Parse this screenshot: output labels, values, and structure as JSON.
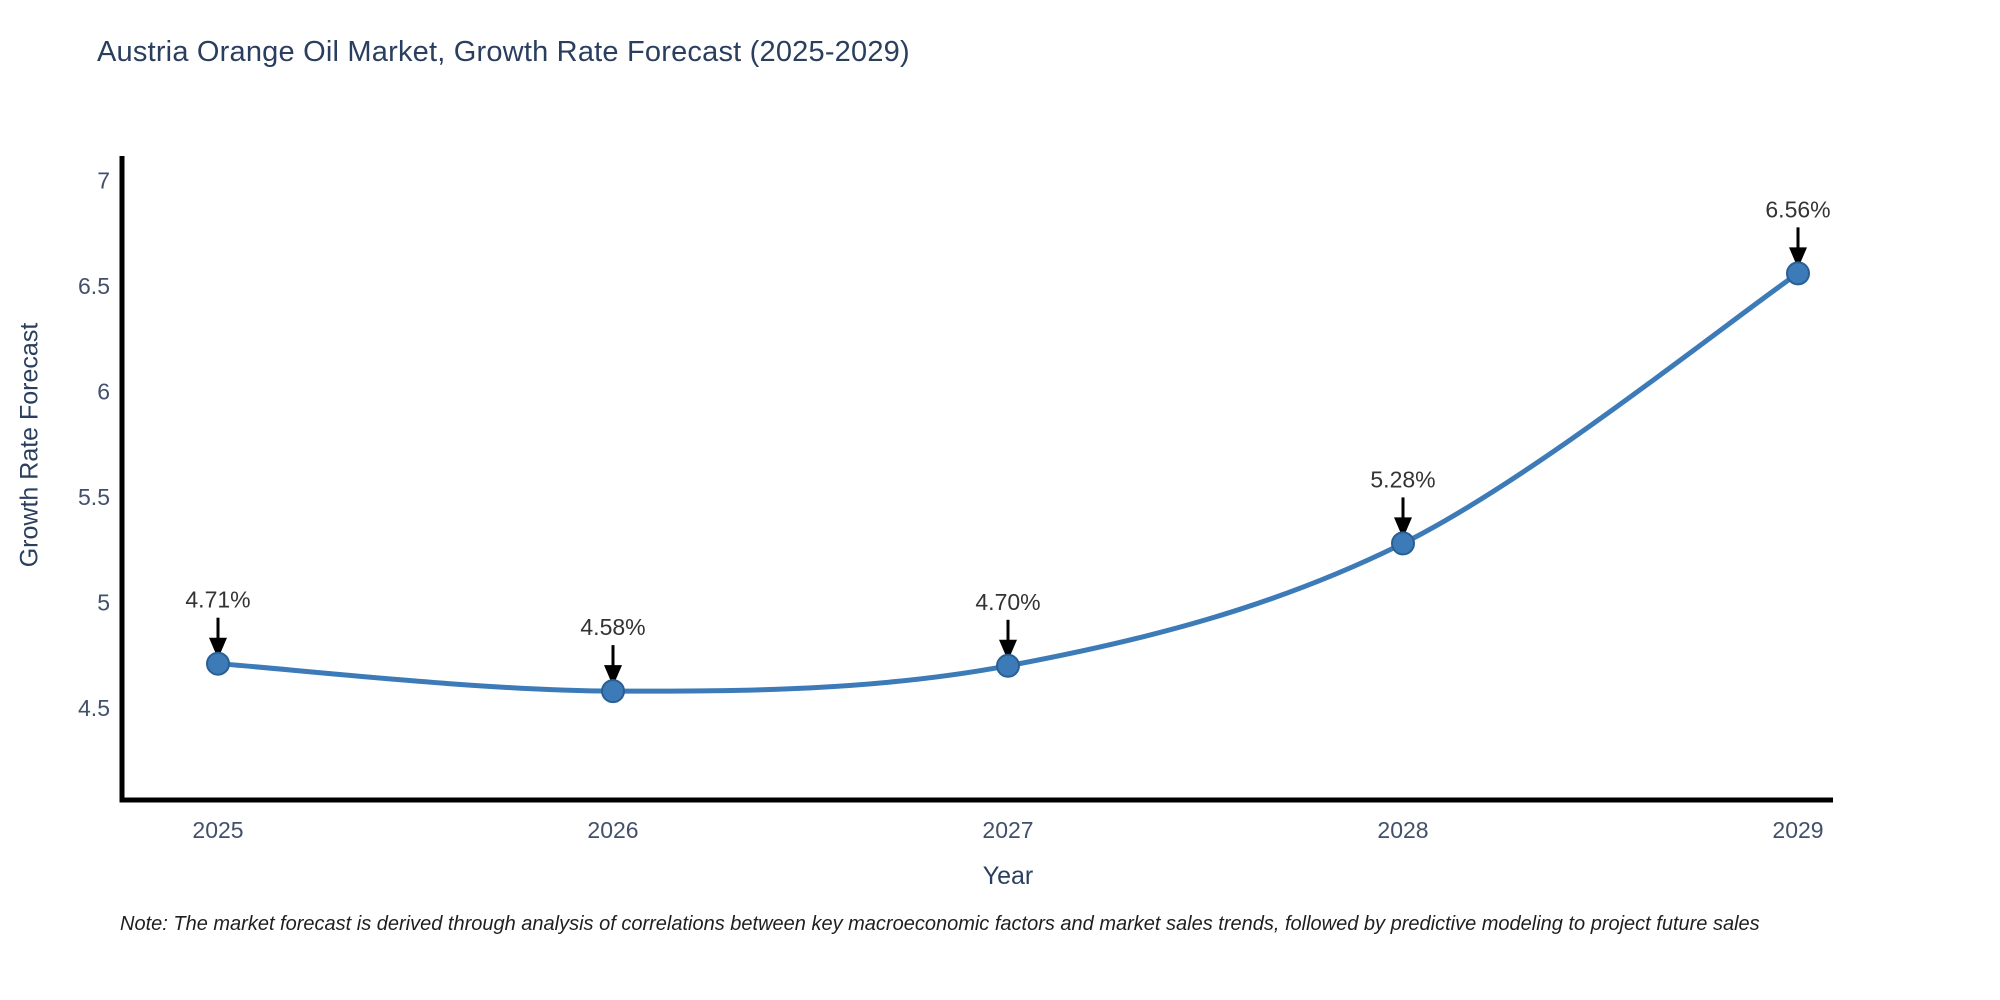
{
  "chart": {
    "title": "Austria Orange Oil Market, Growth Rate Forecast (2025-2029)",
    "xlabel": "Year",
    "ylabel": "Growth Rate Forecast",
    "note": "Note: The market forecast is derived through analysis of correlations between key macroeconomic factors and market sales trends, followed by predictive modeling to project future sales"
  },
  "chart_data": {
    "type": "line",
    "title": "Austria Orange Oil Market, Growth Rate Forecast (2025-2029)",
    "x": [
      2025,
      2026,
      2027,
      2028,
      2029
    ],
    "series": [
      {
        "name": "Growth Rate Forecast",
        "values": [
          4.71,
          4.58,
          4.7,
          5.28,
          6.56
        ]
      }
    ],
    "point_labels": [
      "4.71%",
      "4.58%",
      "4.70%",
      "5.28%",
      "6.56%"
    ],
    "xlabel": "Year",
    "ylabel": "Growth Rate Forecast",
    "yticks": [
      4.5,
      5,
      5.5,
      6,
      6.5,
      7
    ],
    "ylim": [
      4.06,
      7.26
    ],
    "xlim": [
      2024.73,
      2029.09
    ],
    "grid": false,
    "legend": "none",
    "annotations": "arrow-down-to-point",
    "colors": {
      "line": "#3c7bb8",
      "marker_fill": "#3c7bb8",
      "marker_edge": "#2a5f94",
      "arrow": "#000000",
      "annotation_text": "#333333",
      "axis_text": "#42506b",
      "title_text": "#2a3f5f",
      "spine": "#000000",
      "background": "#ffffff"
    }
  }
}
